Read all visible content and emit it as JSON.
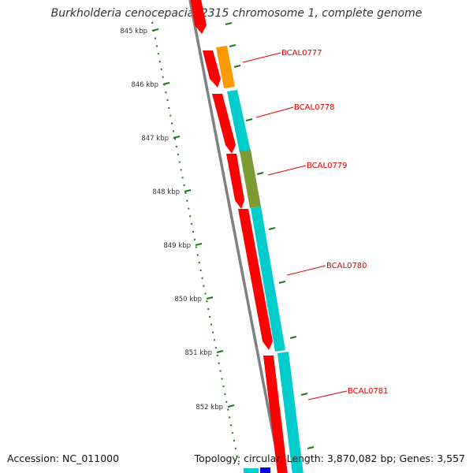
{
  "map": {
    "title": "Burkholderia cenocepacia J2315 chromosome 1, complete genome",
    "accession_text": "Accession: NC_011000",
    "summary_text": "Topology: circular; Length: 3,870,082 bp; Genes: 3,557",
    "colors": {
      "backbone": "#808080",
      "ruler": "#1a7a1a",
      "label": "#e00000",
      "reverse_feature": "#ff0000",
      "forward_feature": "#00cccc",
      "highlight_orange": "#ff9900",
      "highlight_olive": "#7a9a33",
      "partial_blue": "#0000dd"
    },
    "ruler_ticks": [
      {
        "label": "845 kbp"
      },
      {
        "label": "846 kbp"
      },
      {
        "label": "847 kbp"
      },
      {
        "label": "848 kbp"
      },
      {
        "label": "849 kbp"
      },
      {
        "label": "850 kbp"
      },
      {
        "label": "851 kbp"
      },
      {
        "label": "852 kbp"
      }
    ],
    "gene_labels": [
      {
        "label": "BCAL0777"
      },
      {
        "label": "BCAL0778"
      },
      {
        "label": "BCAL0779"
      },
      {
        "label": "BCAL0780"
      },
      {
        "label": "BCAL0781"
      }
    ]
  }
}
